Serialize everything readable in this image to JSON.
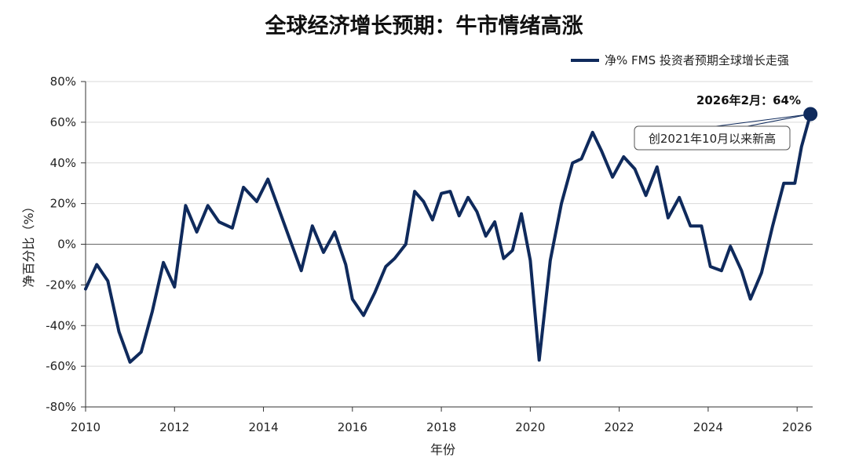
{
  "chart_data": {
    "type": "line",
    "title": "全球经济增长预期：牛市情绪高涨",
    "xlabel": "年份",
    "ylabel": "净百分比（%）",
    "xlim": [
      2010,
      2026.35
    ],
    "ylim": [
      -80,
      80
    ],
    "x_ticks": [
      "2010",
      "2012",
      "2014",
      "2016",
      "2018",
      "2020",
      "2022",
      "2024",
      "2026"
    ],
    "y_ticks": [
      "80%",
      "60%",
      "40%",
      "20%",
      "0%",
      "-20%",
      "-40%",
      "-60%",
      "-80%"
    ],
    "grid": "horizontal",
    "colors": {
      "line": "#0f2a5c",
      "grid": "#d9d9d9",
      "zero_line": "#666666"
    },
    "legend": {
      "position": "top-right",
      "entries": [
        "净% FMS 投资者预期全球增长走强"
      ]
    },
    "series": [
      {
        "name": "净% FMS 投资者预期全球增长走强",
        "x": [
          2010.0,
          2010.25,
          2010.5,
          2010.75,
          2011.0,
          2011.25,
          2011.5,
          2011.75,
          2012.0,
          2012.25,
          2012.5,
          2012.75,
          2013.0,
          2013.3,
          2013.55,
          2013.85,
          2014.1,
          2014.35,
          2014.6,
          2014.85,
          2015.1,
          2015.35,
          2015.6,
          2015.85,
          2016.0,
          2016.25,
          2016.5,
          2016.75,
          2016.95,
          2017.2,
          2017.4,
          2017.6,
          2017.8,
          2018.0,
          2018.2,
          2018.4,
          2018.6,
          2018.8,
          2019.0,
          2019.2,
          2019.4,
          2019.6,
          2019.8,
          2020.0,
          2020.2,
          2020.45,
          2020.7,
          2020.95,
          2021.15,
          2021.4,
          2021.6,
          2021.85,
          2022.1,
          2022.35,
          2022.6,
          2022.85,
          2023.1,
          2023.35,
          2023.6,
          2023.85,
          2024.05,
          2024.3,
          2024.5,
          2024.75,
          2024.95,
          2025.2,
          2025.45,
          2025.7,
          2025.95,
          2026.1,
          2026.3
        ],
        "values": [
          -22,
          -10,
          -18,
          -43,
          -58,
          -53,
          -33,
          -9,
          -21,
          19,
          6,
          19,
          11,
          8,
          28,
          21,
          32,
          17,
          2,
          -13,
          9,
          -4,
          6,
          -10,
          -27,
          -35,
          -24,
          -11,
          -7,
          0,
          26,
          21,
          12,
          25,
          26,
          14,
          23,
          16,
          4,
          11,
          -7,
          -3,
          15,
          -8,
          -57,
          -8,
          20,
          40,
          42,
          55,
          46,
          33,
          43,
          37,
          24,
          38,
          13,
          23,
          9,
          9,
          -11,
          -13,
          -1,
          -13,
          -27,
          -14,
          9,
          30,
          30,
          48,
          64
        ]
      }
    ],
    "annotations": [
      {
        "text": "2026年2月：64%",
        "x": 2026.3,
        "y": 64
      },
      {
        "text": "创2021年10月以来新高",
        "x": 2026.3,
        "y": 64
      }
    ]
  }
}
